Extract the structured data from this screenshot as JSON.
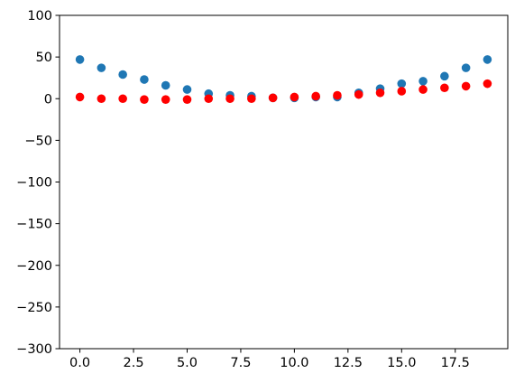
{
  "chart_data": {
    "type": "scatter",
    "title": "",
    "xlabel": "",
    "ylabel": "",
    "xlim": [
      -0.95,
      19.95
    ],
    "ylim": [
      -300,
      100
    ],
    "grid": false,
    "x_ticks": [
      0.0,
      2.5,
      5.0,
      7.5,
      10.0,
      12.5,
      15.0,
      17.5
    ],
    "x_tick_labels": [
      "0.0",
      "2.5",
      "5.0",
      "7.5",
      "10.0",
      "12.5",
      "15.0",
      "17.5"
    ],
    "y_ticks": [
      100,
      50,
      0,
      -50,
      -100,
      -150,
      -200,
      -250,
      -300
    ],
    "y_tick_labels": [
      "100",
      "50",
      "0",
      "−50",
      "−100",
      "−150",
      "−200",
      "−250",
      "−300"
    ],
    "x": [
      0,
      1,
      2,
      3,
      4,
      5,
      6,
      7,
      8,
      9,
      10,
      11,
      12,
      13,
      14,
      15,
      16,
      17,
      18,
      19
    ],
    "series": [
      {
        "color": "#1f77b4",
        "values": [
          47,
          37,
          29,
          23,
          16,
          11,
          6,
          4,
          3,
          1,
          1,
          2,
          2,
          7,
          12,
          18,
          21,
          27,
          37,
          47
        ]
      },
      {
        "color": "#ff0000",
        "values": [
          2,
          0,
          0,
          -1,
          -1,
          -1,
          0,
          0,
          0,
          1,
          2,
          3,
          4,
          5,
          7,
          9,
          11,
          13,
          15,
          18
        ]
      }
    ]
  }
}
